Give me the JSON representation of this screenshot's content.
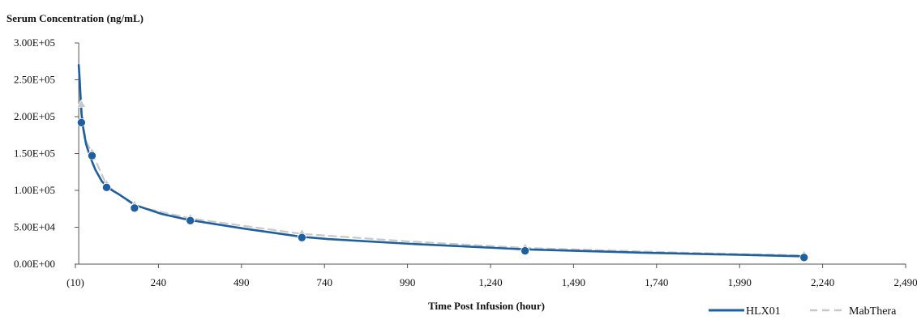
{
  "chart_data": {
    "type": "line",
    "title": "",
    "ylabel": "Serum Concentration (ng/mL)",
    "xlabel": "Time Post Infusion (hour)",
    "xlim": [
      -10,
      2490
    ],
    "ylim": [
      0,
      300000
    ],
    "x_ticks": [
      -10,
      240,
      490,
      740,
      990,
      1240,
      1490,
      1740,
      1990,
      2240,
      2490
    ],
    "x_tick_labels": [
      "(10)",
      "240",
      "490",
      "740",
      "990",
      "1,240",
      "1,490",
      "1,740",
      "1,990",
      "2,240",
      "2,490"
    ],
    "y_ticks": [
      0,
      50000,
      100000,
      150000,
      200000,
      250000,
      300000
    ],
    "y_tick_labels": [
      "0.00E+00",
      "5.00E+04",
      "1.00E+05",
      "1.50E+05",
      "2.00E+05",
      "2.50E+05",
      "3.00E+05"
    ],
    "grid": false,
    "legend_position": "bottom-right",
    "series": [
      {
        "name": "HLX01",
        "style": "solid",
        "color": "#1f5fa0",
        "curve": [
          [
            0,
            270000
          ],
          [
            3,
            250000
          ],
          [
            8,
            205000
          ],
          [
            14,
            183000
          ],
          [
            22,
            163000
          ],
          [
            35,
            145000
          ],
          [
            50,
            128000
          ],
          [
            70,
            112000
          ],
          [
            90,
            103000
          ],
          [
            120,
            95000
          ],
          [
            170,
            80000
          ],
          [
            250,
            68000
          ],
          [
            330,
            60000
          ],
          [
            500,
            48000
          ],
          [
            672,
            37000
          ],
          [
            750,
            34000
          ],
          [
            1000,
            27500
          ],
          [
            1344,
            20000
          ],
          [
            1700,
            15500
          ],
          [
            2000,
            12500
          ],
          [
            2184,
            10500
          ]
        ],
        "points": [
          [
            8,
            192000
          ],
          [
            40,
            147000
          ],
          [
            84,
            104000
          ],
          [
            168,
            76000
          ],
          [
            336,
            59000
          ],
          [
            672,
            36000
          ],
          [
            1344,
            18000
          ],
          [
            2184,
            9000
          ]
        ]
      },
      {
        "name": "MabThera",
        "style": "dashed",
        "color": "#c8c8c8",
        "curve": [
          [
            8,
            215000
          ],
          [
            14,
            188000
          ],
          [
            22,
            167000
          ],
          [
            40,
            151000
          ],
          [
            84,
            107000
          ],
          [
            168,
            79000
          ],
          [
            336,
            62000
          ],
          [
            672,
            41000
          ],
          [
            1000,
            30500
          ],
          [
            1344,
            22000
          ],
          [
            1700,
            17000
          ],
          [
            2000,
            13500
          ],
          [
            2184,
            12000
          ]
        ],
        "points": [
          [
            8,
            215000
          ],
          [
            40,
            150000
          ],
          [
            84,
            107000
          ],
          [
            168,
            79000
          ],
          [
            336,
            61000
          ],
          [
            672,
            40000
          ],
          [
            1344,
            21000
          ],
          [
            2184,
            11000
          ]
        ]
      }
    ]
  }
}
